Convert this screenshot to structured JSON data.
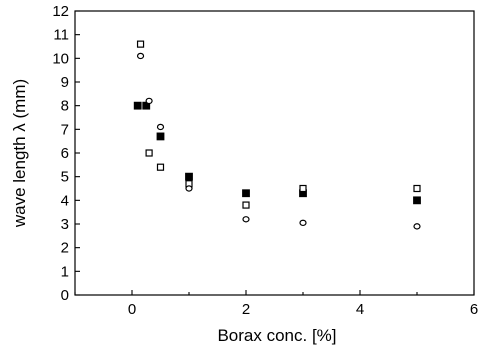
{
  "chart_data": {
    "type": "scatter",
    "title": "",
    "xlabel": "Borax conc. [%]",
    "ylabel": "wave length λ (mm)",
    "xlim": [
      -1,
      6
    ],
    "ylim": [
      0,
      12
    ],
    "x_ticks": [
      0,
      2,
      4,
      6
    ],
    "x_tick_labels": [
      "0",
      "2",
      "4",
      "6"
    ],
    "y_ticks": [
      0,
      1,
      2,
      3,
      4,
      5,
      6,
      7,
      8,
      9,
      10,
      11,
      12
    ],
    "y_tick_labels": [
      "0",
      "1",
      "2",
      "3",
      "4",
      "5",
      "6",
      "7",
      "8",
      "9",
      "10",
      "11",
      "12"
    ],
    "grid": false,
    "series": [
      {
        "marker": "filled-square",
        "points": [
          [
            0.1,
            8.0
          ],
          [
            0.25,
            8.0
          ],
          [
            0.5,
            6.7
          ],
          [
            1.0,
            5.0
          ],
          [
            2.0,
            4.3
          ],
          [
            3.0,
            4.3
          ],
          [
            5.0,
            4.0
          ]
        ]
      },
      {
        "marker": "open-square",
        "points": [
          [
            0.15,
            10.6
          ],
          [
            0.3,
            6.0
          ],
          [
            0.5,
            5.4
          ],
          [
            1.0,
            4.7
          ],
          [
            2.0,
            3.8
          ],
          [
            3.0,
            4.5
          ],
          [
            5.0,
            4.5
          ]
        ]
      },
      {
        "marker": "open-circle",
        "points": [
          [
            0.15,
            10.1
          ],
          [
            0.3,
            8.2
          ],
          [
            0.5,
            7.1
          ],
          [
            1.0,
            4.5
          ],
          [
            2.0,
            3.2
          ],
          [
            3.0,
            3.05
          ],
          [
            5.0,
            2.9
          ]
        ]
      }
    ]
  }
}
